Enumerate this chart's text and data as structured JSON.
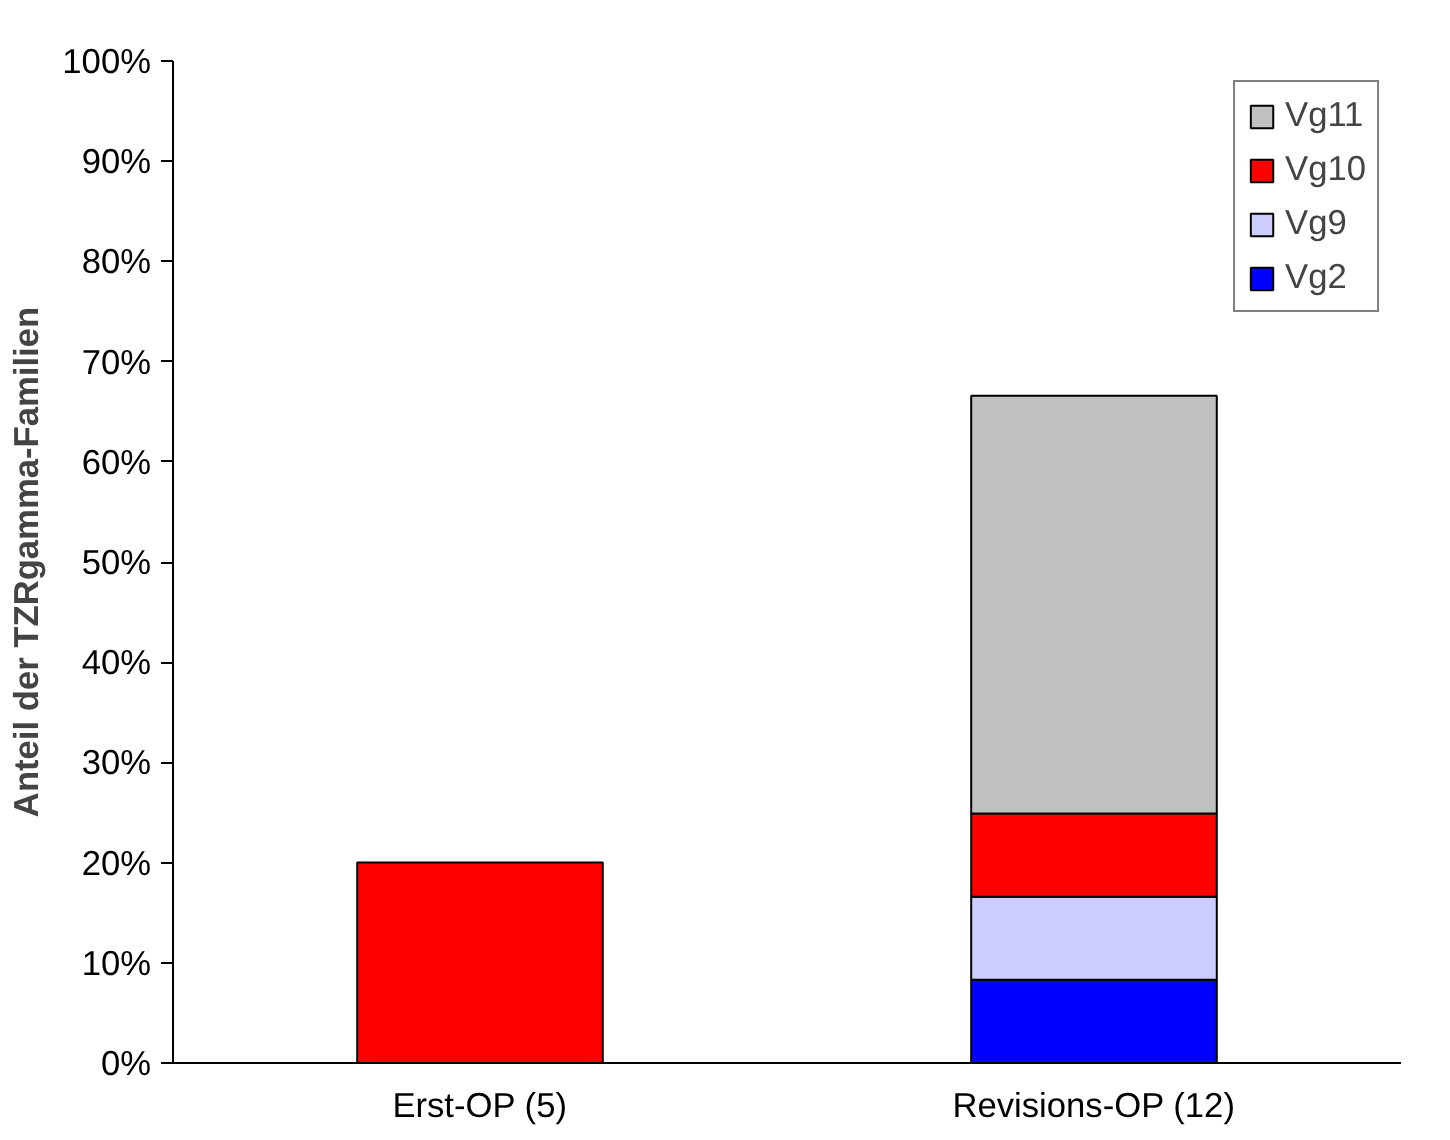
{
  "chart_data": {
    "type": "bar",
    "stacked": true,
    "ylabel": "Anteil der TZRgamma-Familien",
    "categories": [
      "Erst-OP (5)",
      "Revisions-OP (12)"
    ],
    "series": [
      {
        "name": "Vg2",
        "color": "#0000ff",
        "values": [
          null,
          8.3
        ]
      },
      {
        "name": "Vg9",
        "color": "#ccccff",
        "values": [
          null,
          8.3
        ]
      },
      {
        "name": "Vg10",
        "color": "#ff0000",
        "values": [
          20,
          8.3
        ]
      },
      {
        "name": "Vg11",
        "color": "#c0c0c0",
        "values": [
          null,
          41.7
        ]
      }
    ],
    "ylim": [
      0,
      100
    ],
    "yticks": [
      {
        "value": 0,
        "label": "0%"
      },
      {
        "value": 10,
        "label": "10%"
      },
      {
        "value": 20,
        "label": "20%"
      },
      {
        "value": 30,
        "label": "30%"
      },
      {
        "value": 40,
        "label": "40%"
      },
      {
        "value": 50,
        "label": "50%"
      },
      {
        "value": 60,
        "label": "60%"
      },
      {
        "value": 70,
        "label": "70%"
      },
      {
        "value": 80,
        "label": "80%"
      },
      {
        "value": 90,
        "label": "90%"
      },
      {
        "value": 100,
        "label": "100%"
      }
    ],
    "grid": false,
    "legend": "top right"
  }
}
